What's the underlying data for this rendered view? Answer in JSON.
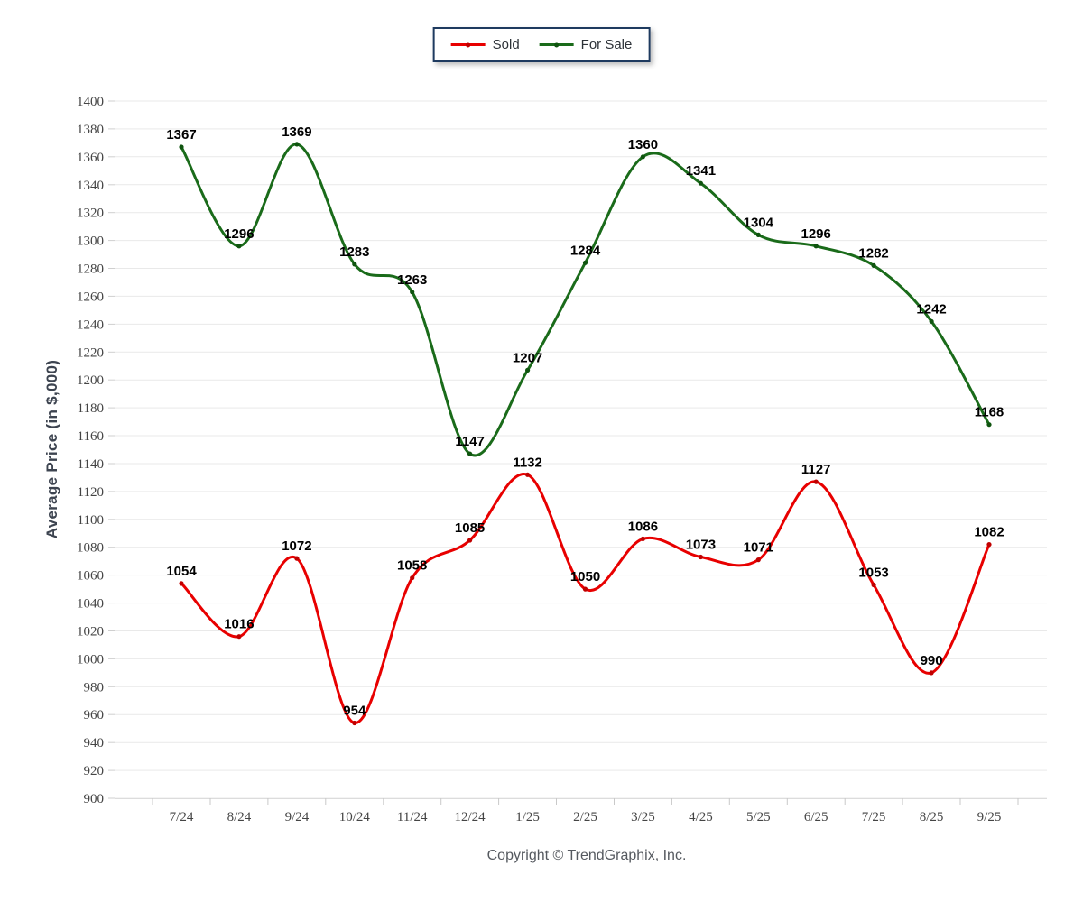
{
  "legend": {
    "items": [
      {
        "label": "Sold",
        "color": "#e80000",
        "marker_color": "#c00000"
      },
      {
        "label": "For Sale",
        "color": "#1a6b1a",
        "marker_color": "#0f540f"
      }
    ],
    "border_color": "#1e3a5f"
  },
  "chart_data": {
    "type": "line",
    "title": "",
    "ylabel": "Average Price (in $,000)",
    "xlabel": "",
    "ylim": [
      900,
      1400
    ],
    "ytick_step": 20,
    "grid": true,
    "legend_position": "top",
    "curve": "smooth-spline",
    "categories": [
      "7/24",
      "8/24",
      "9/24",
      "10/24",
      "11/24",
      "12/24",
      "1/25",
      "2/25",
      "3/25",
      "4/25",
      "5/25",
      "6/25",
      "7/25",
      "8/25",
      "9/25"
    ],
    "series": [
      {
        "name": "Sold",
        "color": "#e80000",
        "marker_color": "#c00000",
        "values": [
          1054,
          1016,
          1072,
          954,
          1058,
          1085,
          1132,
          1050,
          1086,
          1073,
          1071,
          1127,
          1053,
          990,
          1082
        ]
      },
      {
        "name": "For Sale",
        "color": "#1a6b1a",
        "marker_color": "#0f540f",
        "values": [
          1367,
          1296,
          1369,
          1283,
          1263,
          1147,
          1207,
          1284,
          1360,
          1341,
          1304,
          1296,
          1282,
          1242,
          1168
        ]
      }
    ]
  },
  "footer": {
    "copyright": "Copyright © TrendGraphix, Inc."
  }
}
